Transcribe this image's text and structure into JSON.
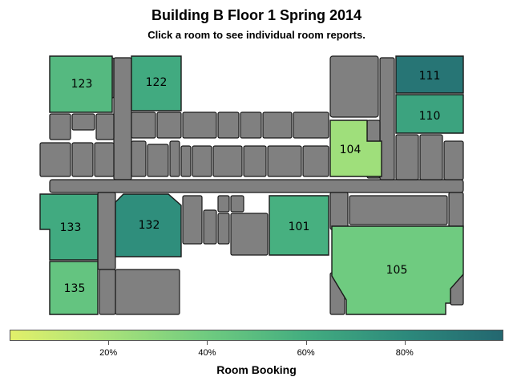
{
  "title": "Building B Floor 1 Spring 2014",
  "subtitle": "Click a room to see individual room reports.",
  "legend": {
    "title": "Room Booking",
    "colors": [
      "#e2f06a",
      "#a8e27a",
      "#6fcb80",
      "#43ad80",
      "#2d8a7c",
      "#236770"
    ],
    "ticks": [
      {
        "label": "20%",
        "value": 0.2
      },
      {
        "label": "40%",
        "value": 0.4
      },
      {
        "label": "60%",
        "value": 0.6
      },
      {
        "label": "80%",
        "value": 0.8
      }
    ],
    "range": [
      0.0,
      1.0
    ]
  },
  "rooms": [
    {
      "label": "123",
      "booking": 0.52
    },
    {
      "label": "122",
      "booking": 0.62
    },
    {
      "label": "111",
      "booking": 0.92
    },
    {
      "label": "110",
      "booking": 0.66
    },
    {
      "label": "104",
      "booking": 0.23
    },
    {
      "label": "133",
      "booking": 0.62
    },
    {
      "label": "132",
      "booking": 0.78
    },
    {
      "label": "101",
      "booking": 0.58
    },
    {
      "label": "135",
      "booking": 0.45
    },
    {
      "label": "105",
      "booking": 0.4
    }
  ],
  "colors": {
    "unbooked": "#808080",
    "outline": "#1a1a1a"
  }
}
